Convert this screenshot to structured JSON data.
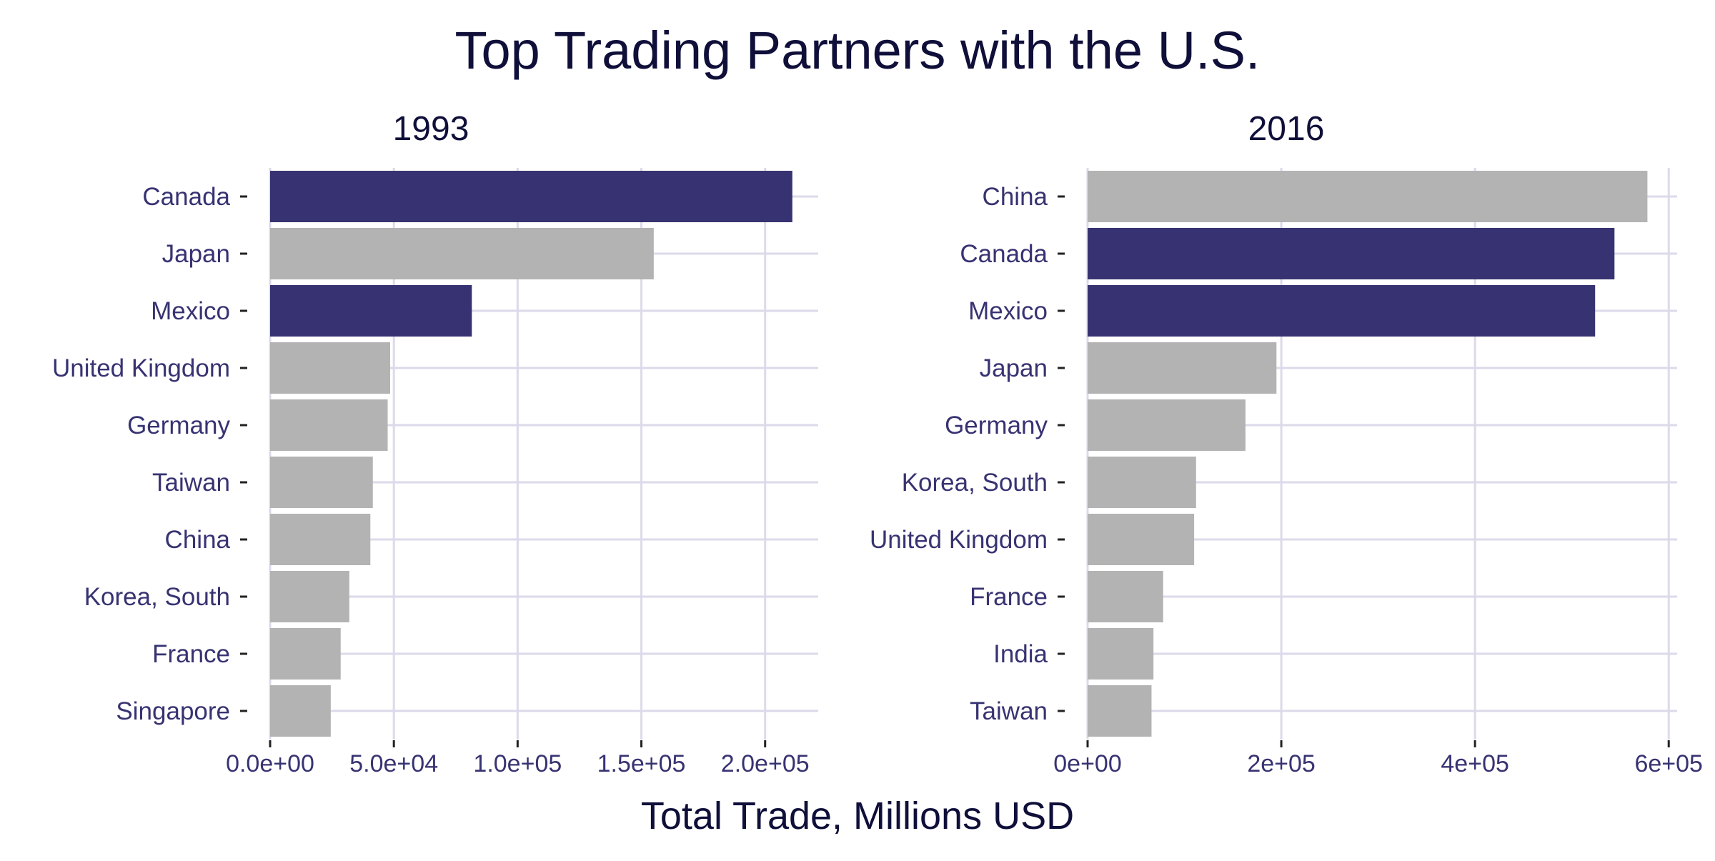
{
  "title": "Top Trading Partners with the U.S.",
  "xlabel": "Total Trade, Millions USD",
  "colors": {
    "highlight": "#373372",
    "other": "#b3b3b3",
    "grid": "#dcdaea",
    "axis_text": "#373372",
    "title_text": "#0f0f3a"
  },
  "chart_data": [
    {
      "type": "bar",
      "orientation": "horizontal",
      "panel_title": "1993",
      "categories": [
        "Canada",
        "Japan",
        "Mexico",
        "United Kingdom",
        "Germany",
        "Taiwan",
        "China",
        "Korea, South",
        "France",
        "Singapore"
      ],
      "values": [
        211000,
        155000,
        81500,
        48500,
        47500,
        41500,
        40500,
        32000,
        28500,
        24500
      ],
      "highlighted": [
        true,
        false,
        true,
        false,
        false,
        false,
        false,
        false,
        false,
        false
      ],
      "xlim": [
        0,
        220000
      ],
      "xticks": [
        0,
        50000,
        100000,
        150000,
        200000
      ],
      "xtick_labels": [
        "0.0e+00",
        "5.0e+04",
        "1.0e+05",
        "1.5e+05",
        "2.0e+05"
      ],
      "grid": true
    },
    {
      "type": "bar",
      "orientation": "horizontal",
      "panel_title": "2016",
      "categories": [
        "China",
        "Canada",
        "Mexico",
        "Japan",
        "Germany",
        "Korea, South",
        "United Kingdom",
        "France",
        "India",
        "Taiwan"
      ],
      "values": [
        578000,
        544000,
        524000,
        195000,
        163000,
        112000,
        110000,
        78000,
        68000,
        66000
      ],
      "highlighted": [
        false,
        true,
        true,
        false,
        false,
        false,
        false,
        false,
        false,
        false
      ],
      "xlim": [
        0,
        605000
      ],
      "xticks": [
        0,
        200000,
        400000,
        600000
      ],
      "xtick_labels": [
        "0e+00",
        "2e+05",
        "4e+05",
        "6e+05"
      ],
      "grid": true
    }
  ]
}
